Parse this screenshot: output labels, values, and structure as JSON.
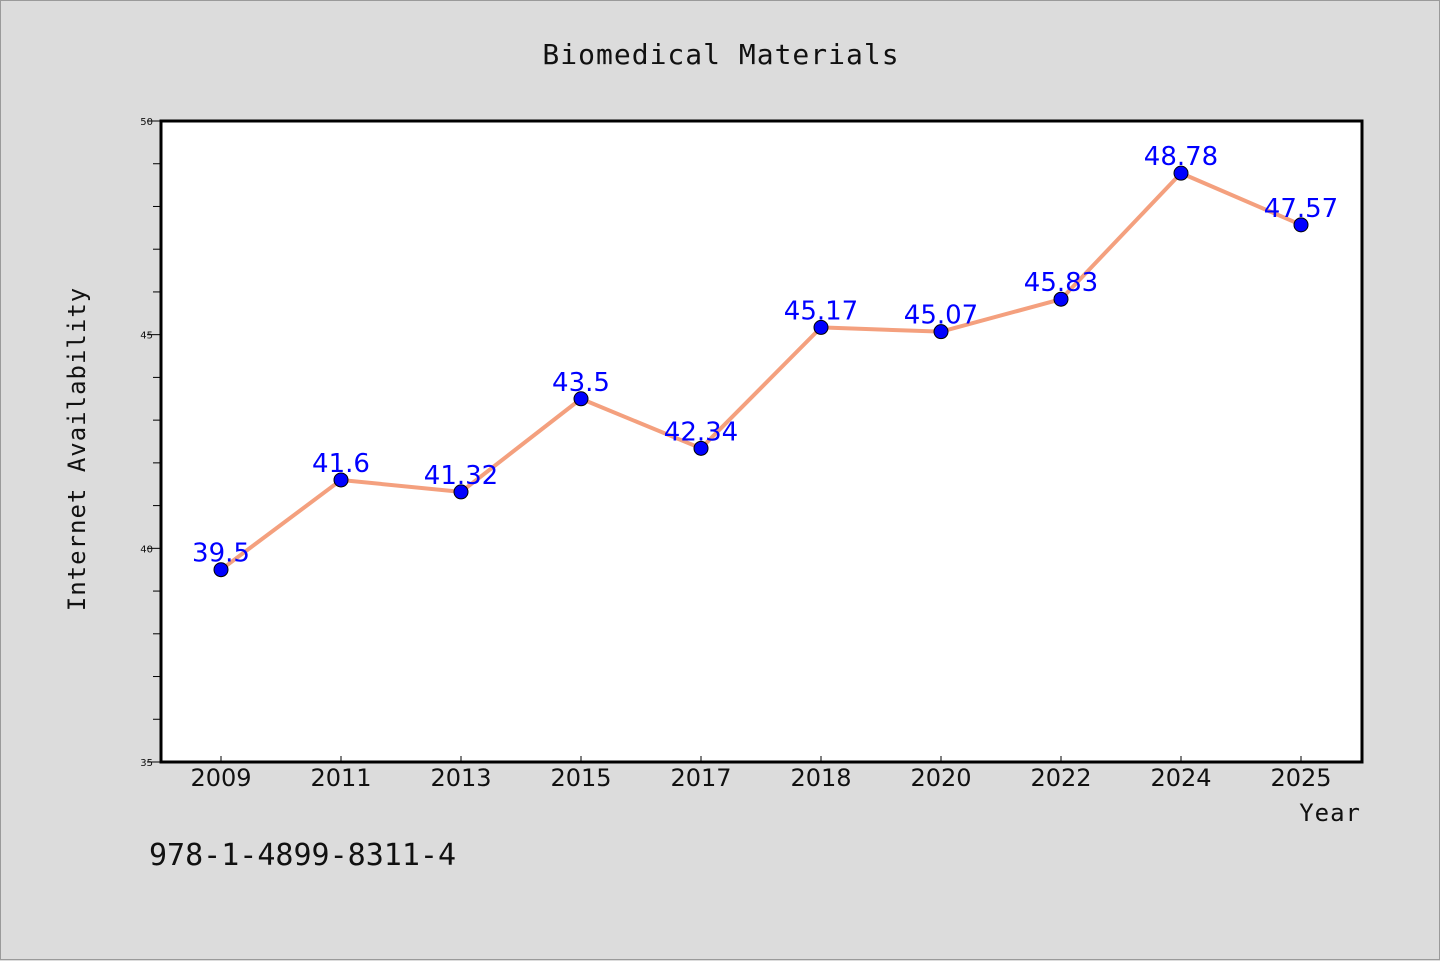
{
  "chart_data": {
    "type": "line",
    "title": "Biomedical Materials",
    "xlabel": "Year",
    "ylabel": "Internet Availability",
    "categories": [
      "2009",
      "2011",
      "2013",
      "2015",
      "2017",
      "2018",
      "2020",
      "2022",
      "2024",
      "2025"
    ],
    "values": [
      39.5,
      41.6,
      41.32,
      43.5,
      42.34,
      45.17,
      45.07,
      45.83,
      48.78,
      47.57
    ],
    "data_labels": [
      "39.5",
      "41.6",
      "41.32",
      "43.5",
      "42.34",
      "45.17",
      "45.07",
      "45.83",
      "48.78",
      "47.57"
    ],
    "ylim": [
      35,
      50
    ],
    "yticks": [
      "35",
      "40",
      "45",
      "50"
    ],
    "grid": false,
    "line_color": "#f4a07e",
    "marker_color": "#0000ff",
    "label_color": "#0000ff"
  },
  "annotation": "978-1-4899-8311-4"
}
